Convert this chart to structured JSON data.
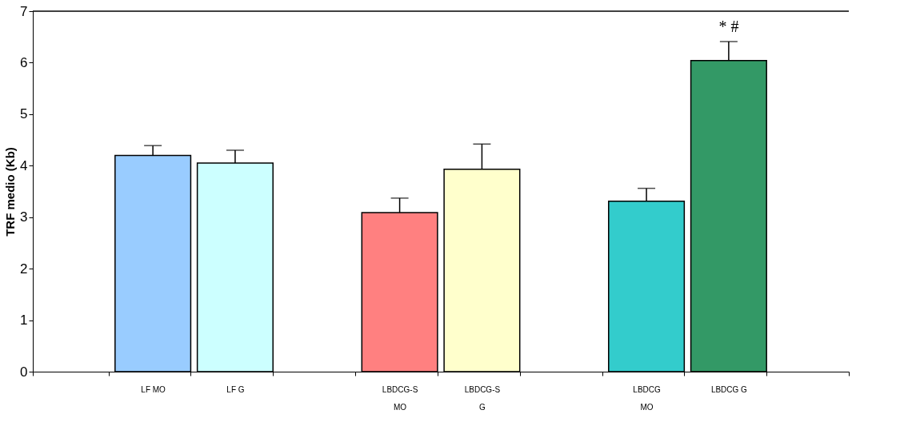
{
  "chart_data": {
    "type": "bar",
    "ylabel": "TRF medio (Kb)",
    "categories": [
      null,
      "LF MO",
      "LF G",
      null,
      "LBDCG-S\nMO",
      "LBDCG-S\nG",
      null,
      "LBDCG\nMO",
      "LBDCG G",
      null
    ],
    "values": [
      null,
      4.2,
      4.05,
      null,
      3.09,
      3.93,
      null,
      3.31,
      6.04,
      null
    ],
    "errors": [
      null,
      0.19,
      0.25,
      null,
      0.28,
      0.49,
      null,
      0.25,
      0.37,
      null
    ],
    "colors": [
      "#ffffff",
      "#99ccff",
      "#ccffff",
      "#ffffff",
      "#ff8080",
      "#ffffcc",
      "#ffffff",
      "#33cccc",
      "#339966",
      "#ffffff"
    ],
    "ylim": [
      0,
      7
    ],
    "yticks": [
      0,
      1,
      2,
      3,
      4,
      5,
      6,
      7
    ],
    "grid": false,
    "annotations": [
      "*  #"
    ]
  }
}
